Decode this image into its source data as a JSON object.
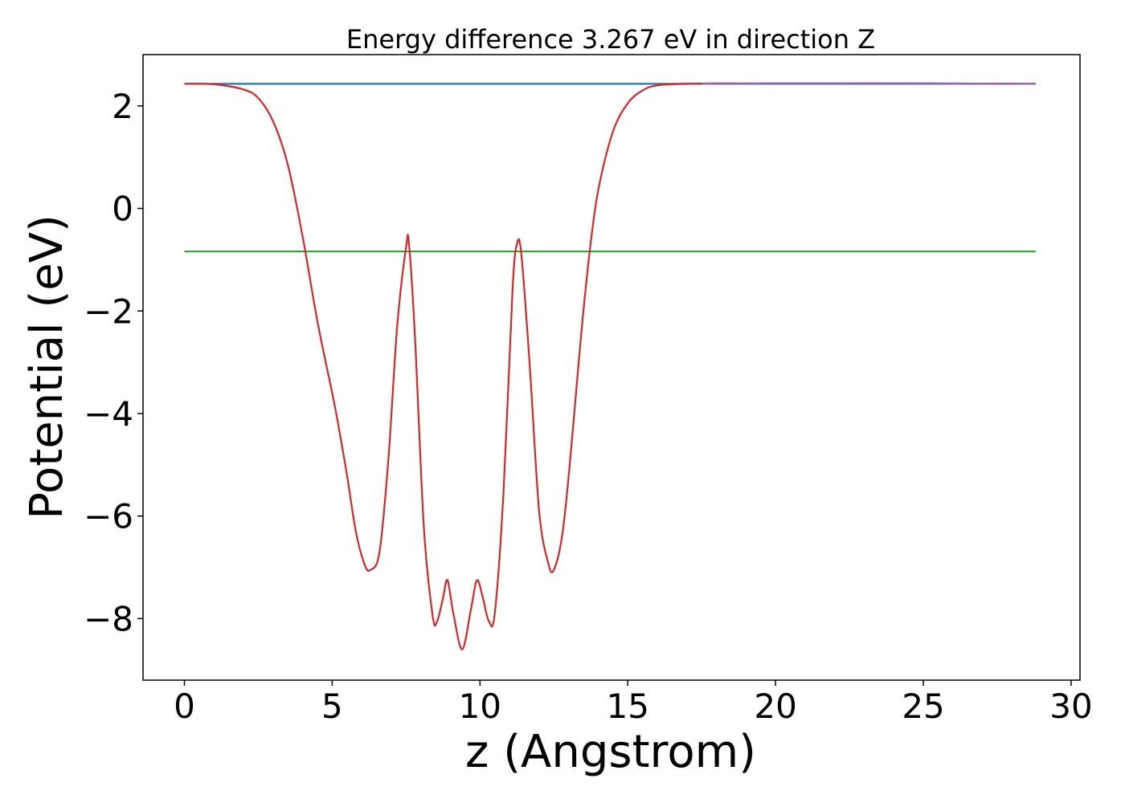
{
  "chart_data": {
    "type": "line",
    "title": "Energy difference 3.267 eV in direction Z",
    "xlabel": "z (Angstrom)",
    "ylabel": "Potential (eV)",
    "xlim": [
      -1.4,
      30.3
    ],
    "ylim": [
      -9.2,
      3.0
    ],
    "xticks": [
      0,
      5,
      10,
      15,
      20,
      25,
      30
    ],
    "xtick_labels": [
      "0",
      "5",
      "10",
      "15",
      "20",
      "25",
      "30"
    ],
    "yticks": [
      2,
      0,
      -2,
      -4,
      -6,
      -8
    ],
    "ytick_labels": [
      "2",
      "0",
      "−2",
      "−4",
      "−6",
      "−8"
    ],
    "grid": false,
    "legend": "none",
    "series": [
      {
        "color": "#1f77b4",
        "x": [
          0,
          28.8
        ],
        "y": [
          2.43,
          2.43
        ]
      },
      {
        "color": "#2ca02c",
        "x": [
          0,
          28.8
        ],
        "y": [
          -0.84,
          -0.84
        ]
      },
      {
        "color": "#d62728",
        "x": [
          0,
          1,
          2,
          2.5,
          3,
          3.5,
          4,
          4.5,
          5,
          5.2,
          5.5,
          5.8,
          6.1,
          6.3,
          6.6,
          6.9,
          7.2,
          7.5,
          7.6,
          7.8,
          8.1,
          8.4,
          8.55,
          8.75,
          8.9,
          9.1,
          9.4,
          9.7,
          9.9,
          10.1,
          10.3,
          10.5,
          10.8,
          11.1,
          11.25,
          11.4,
          11.7,
          12.0,
          12.3,
          12.5,
          12.8,
          13.1,
          13.4,
          13.7,
          14.0,
          14.5,
          15.0,
          15.5,
          16.0,
          17.0,
          18.0,
          20.0,
          24.0,
          28.8
        ],
        "y": [
          2.43,
          2.42,
          2.32,
          2.15,
          1.7,
          0.85,
          -0.55,
          -2.2,
          -3.6,
          -4.2,
          -5.2,
          -6.3,
          -6.95,
          -7.05,
          -6.7,
          -4.9,
          -2.3,
          -0.75,
          -0.7,
          -2.5,
          -6.2,
          -7.95,
          -8.05,
          -7.6,
          -7.25,
          -7.9,
          -8.6,
          -7.8,
          -7.25,
          -7.6,
          -8.05,
          -7.9,
          -5.5,
          -1.6,
          -0.7,
          -0.9,
          -3.2,
          -5.9,
          -6.9,
          -7.05,
          -6.3,
          -4.6,
          -2.6,
          -0.9,
          0.35,
          1.5,
          2.05,
          2.3,
          2.4,
          2.43,
          2.44,
          2.44,
          2.44,
          2.43
        ]
      },
      {
        "color": "#8c6bb1",
        "x": [
          17.5,
          20,
          24,
          28.8
        ],
        "y": [
          2.43,
          2.44,
          2.44,
          2.43
        ]
      }
    ]
  }
}
